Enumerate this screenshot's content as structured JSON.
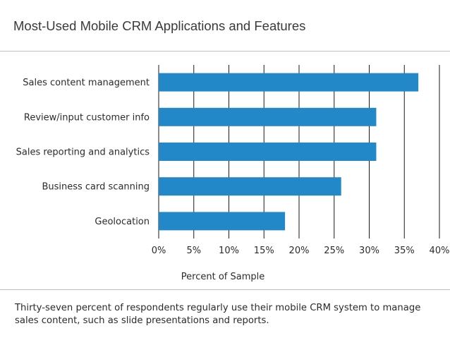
{
  "header": {
    "title": "Most-Used Mobile CRM Applications and Features"
  },
  "footer": {
    "caption": "Thirty-seven percent of respondents regularly use their mobile CRM system to manage sales content, such as slide presentations and reports."
  },
  "colors": {
    "bar": "#2288c8",
    "grid": "#1a1a1a",
    "text": "#2b2b2b",
    "rule": "#bdbdbd"
  },
  "chart_data": {
    "type": "bar",
    "orientation": "horizontal",
    "categories": [
      "Sales content management",
      "Review/input customer info",
      "Sales reporting and analytics",
      "Business card scanning",
      "Geolocation"
    ],
    "values": [
      37,
      31,
      31,
      26,
      18
    ],
    "xlabel": "Percent of Sample",
    "xlim": [
      0,
      40
    ],
    "xticks": [
      0,
      5,
      10,
      15,
      20,
      25,
      30,
      35,
      40
    ],
    "xtick_labels": [
      "0%",
      "5%",
      "10%",
      "15%",
      "20%",
      "25%",
      "30%",
      "35%",
      "40%"
    ],
    "grid": "vertical"
  }
}
